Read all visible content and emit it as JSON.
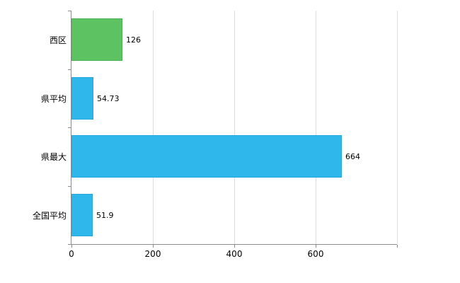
{
  "chart_data": {
    "type": "bar",
    "orientation": "horizontal",
    "title": "",
    "categories": [
      "西区",
      "県平均",
      "県最大",
      "全国平均"
    ],
    "values": [
      126,
      54.73,
      664,
      51.9
    ],
    "value_labels": [
      "126",
      "54.73",
      "664",
      "51.9"
    ],
    "bar_colors": [
      "#5dc262",
      "#2fb7ec",
      "#2fb7ec",
      "#2fb7ec"
    ],
    "bar_border_colors": [
      "#4fb156",
      "#24a8dd",
      "#24a8dd",
      "#24a8dd"
    ],
    "xlim": [
      0,
      800
    ],
    "x_tick_values": [
      0,
      200,
      400,
      600
    ],
    "x_tick_labels": [
      "0",
      "200",
      "400",
      "600"
    ],
    "x_gridline_values": [
      0,
      200,
      400,
      600,
      800
    ],
    "grid": true,
    "legend": false,
    "colors": {
      "gridline": "#dcdcdc",
      "axis": "#8c8c8c",
      "text": "#000000",
      "background": "#ffffff"
    }
  }
}
